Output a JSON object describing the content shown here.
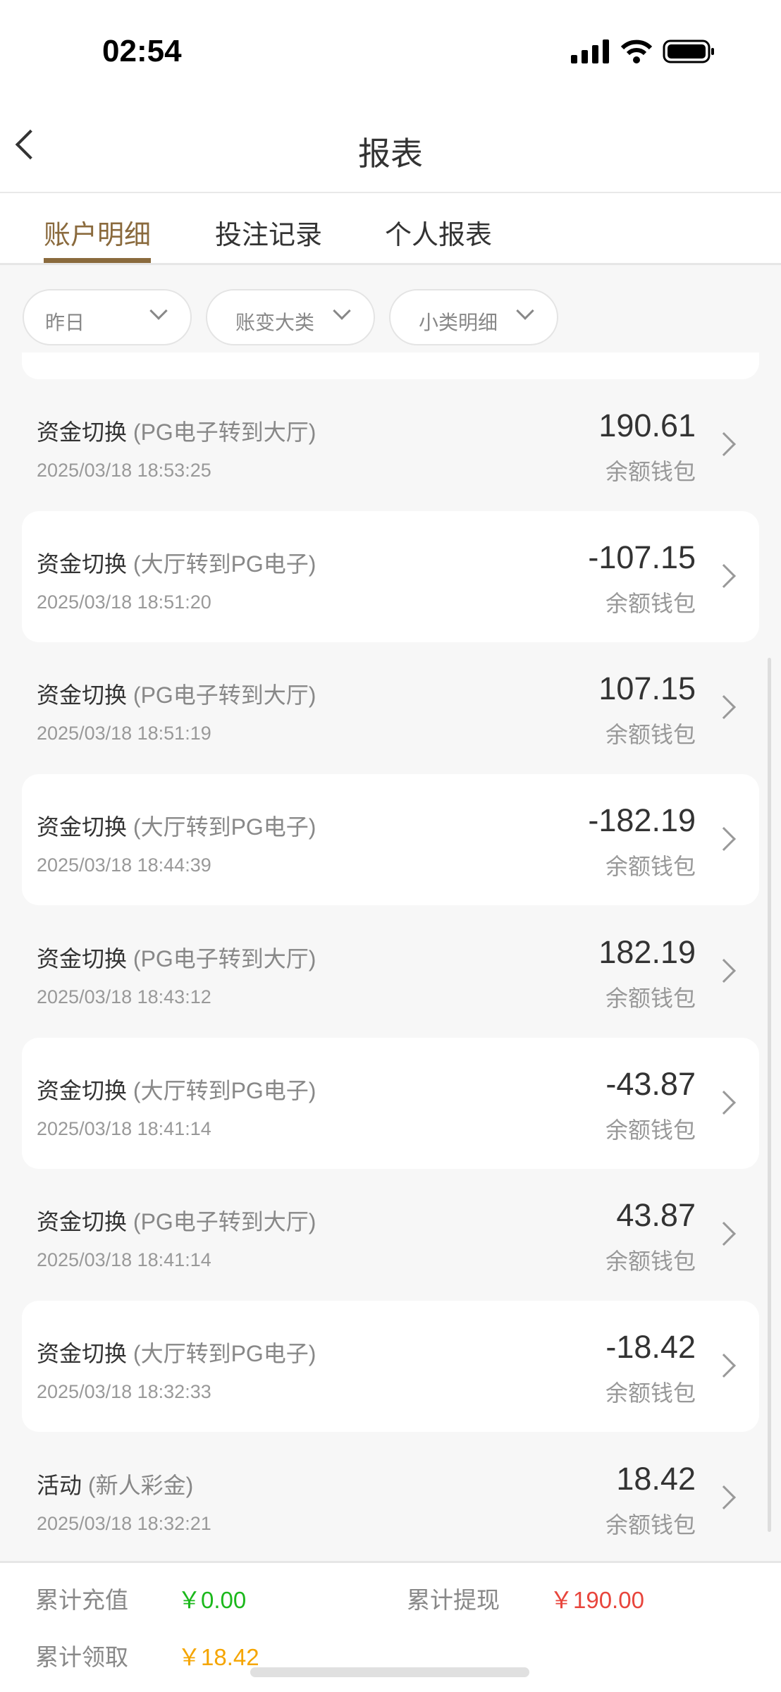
{
  "status_bar": {
    "time": "02:54"
  },
  "header": {
    "title": "报表"
  },
  "tabs": [
    {
      "label": "账户明细",
      "active": true
    },
    {
      "label": "投注记录"
    },
    {
      "label": "个人报表"
    }
  ],
  "filters": [
    {
      "label": "昨日"
    },
    {
      "label": "账变大类"
    },
    {
      "label": "小类明细"
    }
  ],
  "records": [
    {
      "title": "资金切换",
      "detail": "(PG电子转到大厅)",
      "time": "2025/03/18 18:53:25",
      "amount": "190.61",
      "wallet": "余额钱包"
    },
    {
      "title": "资金切换",
      "detail": "(大厅转到PG电子)",
      "time": "2025/03/18 18:51:20",
      "amount": "-107.15",
      "wallet": "余额钱包"
    },
    {
      "title": "资金切换",
      "detail": "(PG电子转到大厅)",
      "time": "2025/03/18 18:51:19",
      "amount": "107.15",
      "wallet": "余额钱包"
    },
    {
      "title": "资金切换",
      "detail": "(大厅转到PG电子)",
      "time": "2025/03/18 18:44:39",
      "amount": "-182.19",
      "wallet": "余额钱包"
    },
    {
      "title": "资金切换",
      "detail": "(PG电子转到大厅)",
      "time": "2025/03/18 18:43:12",
      "amount": "182.19",
      "wallet": "余额钱包"
    },
    {
      "title": "资金切换",
      "detail": "(大厅转到PG电子)",
      "time": "2025/03/18 18:41:14",
      "amount": "-43.87",
      "wallet": "余额钱包"
    },
    {
      "title": "资金切换",
      "detail": "(PG电子转到大厅)",
      "time": "2025/03/18 18:41:14",
      "amount": "43.87",
      "wallet": "余额钱包"
    },
    {
      "title": "资金切换",
      "detail": "(大厅转到PG电子)",
      "time": "2025/03/18 18:32:33",
      "amount": "-18.42",
      "wallet": "余额钱包"
    },
    {
      "title": "活动",
      "detail": "(新人彩金)",
      "time": "2025/03/18 18:32:21",
      "amount": "18.42",
      "wallet": "余额钱包"
    }
  ],
  "summary": {
    "deposit_label": "累计充值",
    "deposit_value": "￥0.00",
    "deposit_color": "#1cb81c",
    "withdraw_label": "累计提现",
    "withdraw_value": "￥190.00",
    "withdraw_color": "#e8453c",
    "claim_label": "累计领取",
    "claim_value": "￥18.42",
    "claim_color": "#f5a500"
  },
  "colors": {
    "accent": "#8a6a3d"
  }
}
